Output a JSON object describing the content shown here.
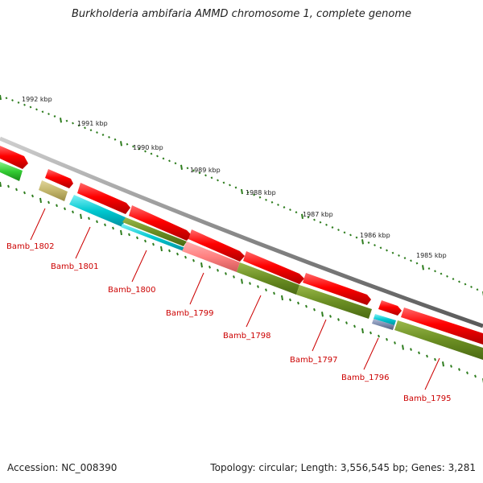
{
  "title": "Burkholderia ambifaria AMMD chromosome 1, complete genome",
  "footer": {
    "accession": "Accession: NC_008390",
    "summary": "Topology: circular; Length: 3,556,545 bp; Genes: 3,281"
  },
  "kbp_labels": [
    "1992 kbp",
    "1991 kbp",
    "1990 kbp",
    "1989 kbp",
    "1988 kbp",
    "1987 kbp",
    "1986 kbp",
    "1985 kbp"
  ],
  "genes": [
    "Bamb_1802",
    "Bamb_1801",
    "Bamb_1800",
    "Bamb_1799",
    "Bamb_1798",
    "Bamb_1797",
    "Bamb_1796",
    "Bamb_1795"
  ],
  "colors": {
    "backbone": "#888888",
    "forward_gene": "#ff0000",
    "green": "#33cc33",
    "olive": "#6b8e23",
    "tan": "#c2b56b",
    "cyan": "#00c8d0",
    "pink": "#ff8080",
    "slate": "#7d8cae",
    "tick": "#2e7d1e",
    "label": "#cc0000"
  }
}
